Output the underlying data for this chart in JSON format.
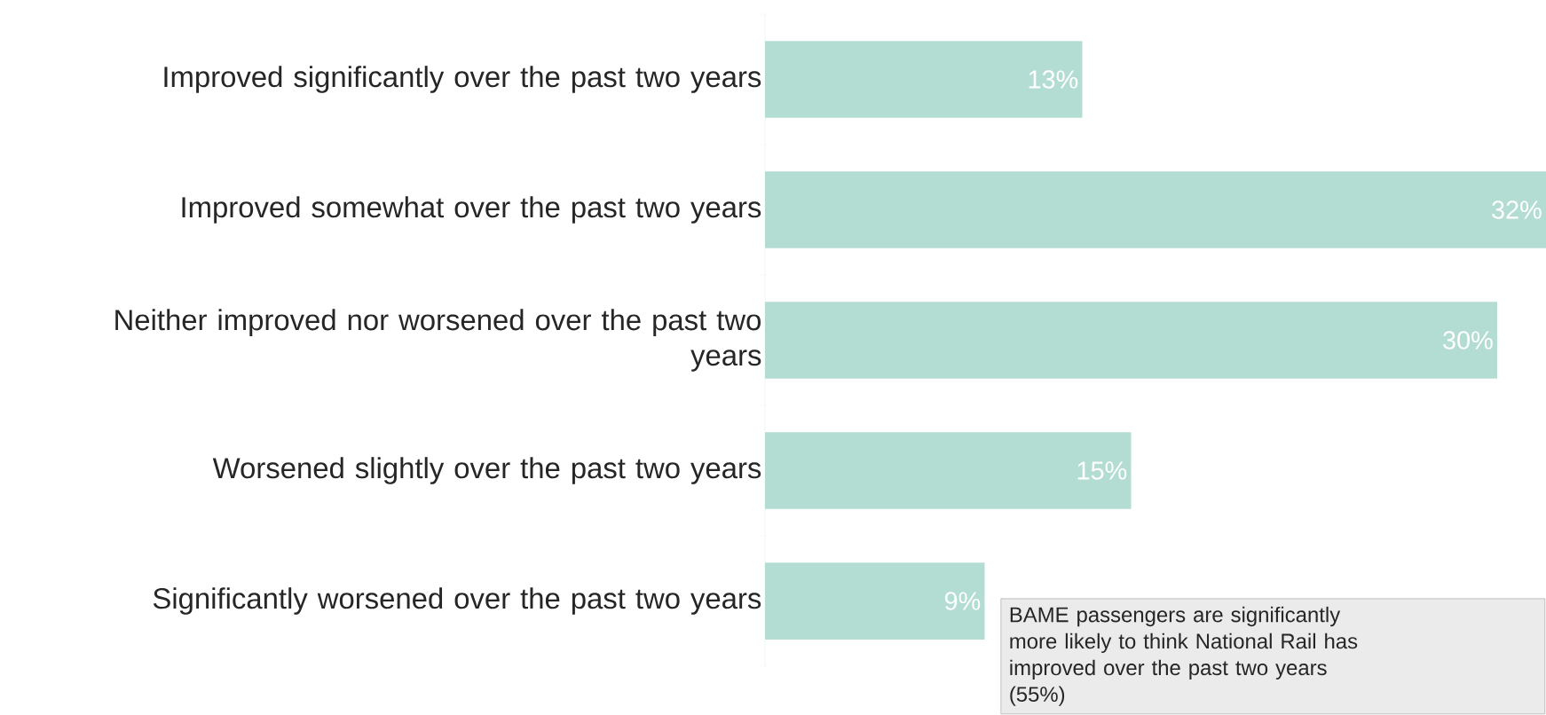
{
  "chart_data": {
    "type": "bar",
    "orientation": "horizontal",
    "categories": [
      "Improved significantly over the past two years",
      "Improved somewhat over the past two years",
      "Neither improved nor worsened over the past two years",
      "Worsened slightly over the past two years",
      "Significantly worsened over the past two years"
    ],
    "values": [
      13,
      32,
      30,
      15,
      9
    ],
    "value_labels": [
      "13%",
      "32%",
      "30%",
      "15%",
      "9%"
    ],
    "color": "#b3ddd3",
    "annotations": [
      "BAME passengers are significantly more likely to think National Rail has improved over the past two years (55%)"
    ]
  }
}
